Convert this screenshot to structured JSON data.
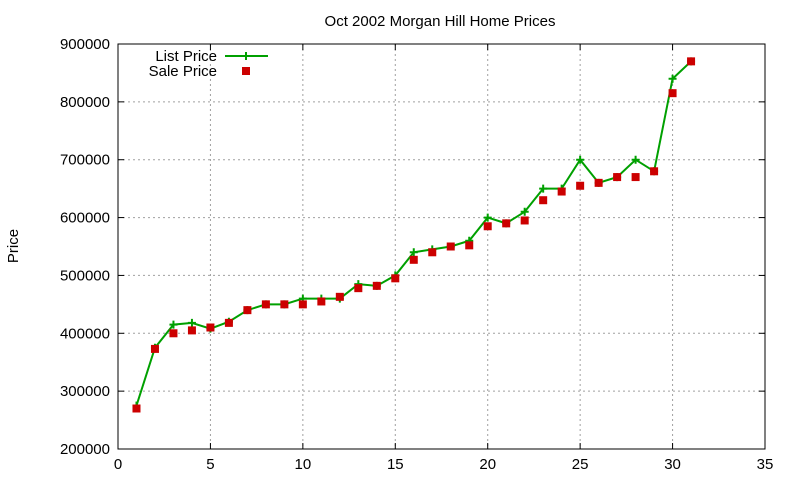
{
  "chart_data": {
    "type": "scatter",
    "title": "Oct 2002 Morgan Hill Home Prices",
    "xlabel": "",
    "ylabel": "Price",
    "xlim": [
      0,
      35
    ],
    "ylim": [
      200000,
      900000
    ],
    "x_ticks": [
      0,
      5,
      10,
      15,
      20,
      25,
      30,
      35
    ],
    "y_ticks": [
      200000,
      300000,
      400000,
      500000,
      600000,
      700000,
      800000,
      900000
    ],
    "grid": true,
    "legend_position": "top-left",
    "series": [
      {
        "name": "List Price",
        "style": "line+cross",
        "color": "#00a000",
        "x": [
          1,
          2,
          3,
          4,
          5,
          6,
          7,
          8,
          9,
          10,
          11,
          12,
          13,
          14,
          15,
          16,
          17,
          18,
          19,
          20,
          21,
          22,
          23,
          24,
          25,
          26,
          27,
          28,
          29,
          30,
          31
        ],
        "values": [
          275000,
          375000,
          415000,
          418000,
          408000,
          420000,
          440000,
          450000,
          450000,
          460000,
          460000,
          460000,
          485000,
          482000,
          500000,
          540000,
          545000,
          550000,
          560000,
          600000,
          590000,
          610000,
          650000,
          650000,
          700000,
          660000,
          670000,
          700000,
          680000,
          840000,
          870000
        ]
      },
      {
        "name": "Sale Price",
        "style": "square",
        "color": "#cc0000",
        "x": [
          1,
          2,
          3,
          4,
          5,
          6,
          7,
          8,
          9,
          10,
          11,
          12,
          13,
          14,
          15,
          16,
          17,
          18,
          19,
          20,
          21,
          22,
          23,
          24,
          25,
          26,
          27,
          28,
          29,
          30,
          31
        ],
        "values": [
          270000,
          373000,
          400000,
          405000,
          410000,
          418000,
          440000,
          450000,
          450000,
          450000,
          455000,
          463000,
          478000,
          482000,
          495000,
          527000,
          540000,
          550000,
          552000,
          585000,
          590000,
          595000,
          630000,
          645000,
          655000,
          660000,
          670000,
          670000,
          680000,
          815000,
          870000
        ]
      }
    ]
  }
}
